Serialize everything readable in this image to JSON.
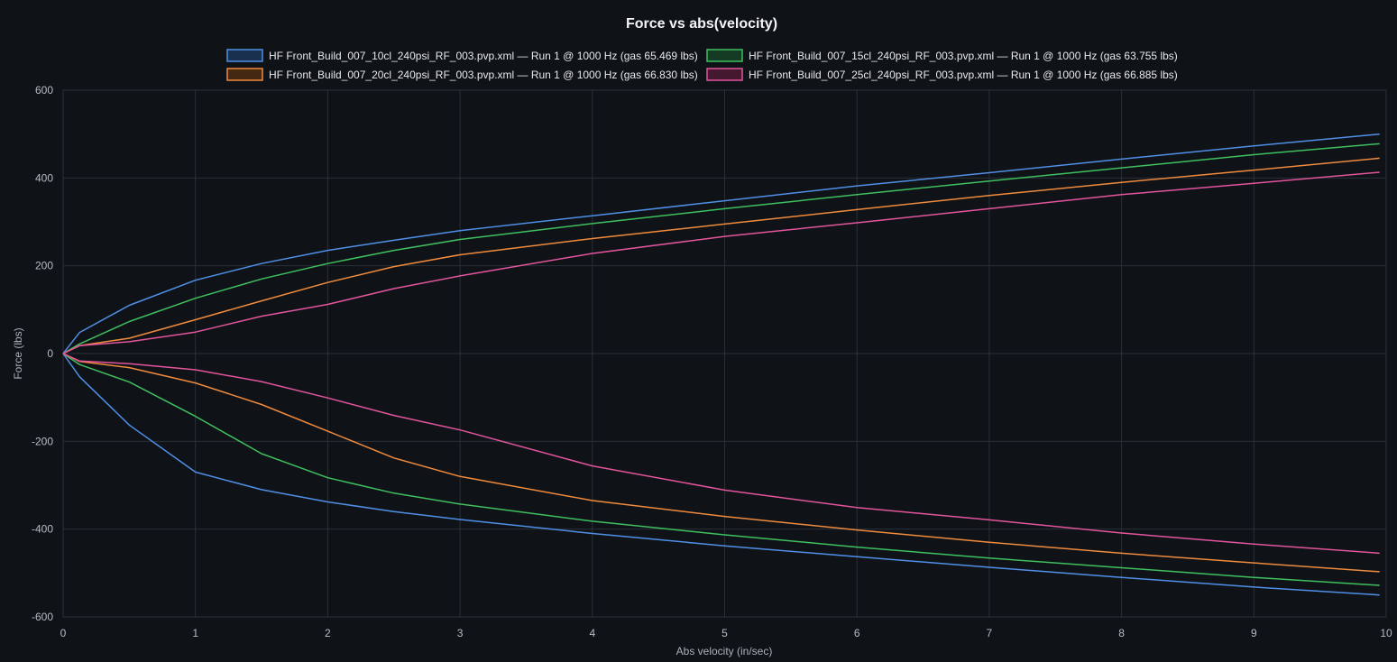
{
  "chart_data": {
    "type": "line",
    "title": "Force vs abs(velocity)",
    "xlabel": "Abs velocity (in/sec)",
    "ylabel": "Force (lbs)",
    "xlim": [
      0,
      10
    ],
    "ylim": [
      -600,
      600
    ],
    "x_ticks": [
      "0",
      "1",
      "2",
      "3",
      "4",
      "5",
      "6",
      "7",
      "8",
      "9",
      "10"
    ],
    "y_ticks": [
      "600",
      "400",
      "200",
      "0",
      "-200",
      "-400",
      "-600"
    ],
    "grid": true,
    "legend_position": "top-center",
    "series": [
      {
        "name": "HF Front_Build_007_10cl_240psi_RF_003.pvp.xml — Run 1 @ 1000 Hz (gas 65.469 lbs)",
        "color": "#4f8fe6",
        "fill": "#19304f",
        "rebound": [
          [
            0,
            0
          ],
          [
            0.125,
            48
          ],
          [
            0.5,
            110
          ],
          [
            1,
            167
          ],
          [
            1.5,
            205
          ],
          [
            2,
            235
          ],
          [
            2.5,
            258
          ],
          [
            3,
            280
          ],
          [
            4,
            314
          ],
          [
            5,
            348
          ],
          [
            6,
            382
          ],
          [
            7,
            412
          ],
          [
            8,
            443
          ],
          [
            9,
            473
          ],
          [
            9.95,
            500
          ]
        ],
        "compression": [
          [
            0,
            0
          ],
          [
            0.125,
            -53
          ],
          [
            0.5,
            -163
          ],
          [
            1,
            -270
          ],
          [
            1.5,
            -310
          ],
          [
            2,
            -338
          ],
          [
            2.5,
            -360
          ],
          [
            3,
            -378
          ],
          [
            4,
            -410
          ],
          [
            5,
            -438
          ],
          [
            6,
            -463
          ],
          [
            7,
            -487
          ],
          [
            8,
            -510
          ],
          [
            9,
            -532
          ],
          [
            9.95,
            -550
          ]
        ]
      },
      {
        "name": "HF Front_Build_007_15cl_240psi_RF_003.pvp.xml — Run 1 @ 1000 Hz (gas 63.755 lbs)",
        "color": "#3fbf5e",
        "fill": "#153b24",
        "rebound": [
          [
            0,
            0
          ],
          [
            0.125,
            22
          ],
          [
            0.5,
            73
          ],
          [
            1,
            126
          ],
          [
            1.5,
            170
          ],
          [
            2,
            205
          ],
          [
            2.5,
            235
          ],
          [
            3,
            260
          ],
          [
            4,
            296
          ],
          [
            5,
            330
          ],
          [
            6,
            362
          ],
          [
            7,
            393
          ],
          [
            8,
            423
          ],
          [
            9,
            453
          ],
          [
            9.95,
            478
          ]
        ],
        "compression": [
          [
            0,
            0
          ],
          [
            0.125,
            -25
          ],
          [
            0.5,
            -65
          ],
          [
            1,
            -143
          ],
          [
            1.5,
            -228
          ],
          [
            2,
            -283
          ],
          [
            2.5,
            -318
          ],
          [
            3,
            -343
          ],
          [
            4,
            -382
          ],
          [
            5,
            -413
          ],
          [
            6,
            -441
          ],
          [
            7,
            -466
          ],
          [
            8,
            -488
          ],
          [
            9,
            -510
          ],
          [
            9.95,
            -528
          ]
        ]
      },
      {
        "name": "HF Front_Build_007_20cl_240psi_RF_003.pvp.xml — Run 1 @ 1000 Hz (gas 66.830 lbs)",
        "color": "#f08a3c",
        "fill": "#452812",
        "rebound": [
          [
            0,
            0
          ],
          [
            0.125,
            18
          ],
          [
            0.5,
            35
          ],
          [
            1,
            77
          ],
          [
            1.5,
            120
          ],
          [
            2,
            162
          ],
          [
            2.5,
            198
          ],
          [
            3,
            225
          ],
          [
            4,
            262
          ],
          [
            5,
            295
          ],
          [
            6,
            328
          ],
          [
            7,
            360
          ],
          [
            8,
            390
          ],
          [
            9,
            418
          ],
          [
            9.95,
            445
          ]
        ],
        "compression": [
          [
            0,
            0
          ],
          [
            0.125,
            -18
          ],
          [
            0.5,
            -32
          ],
          [
            1,
            -67
          ],
          [
            1.5,
            -116
          ],
          [
            2,
            -177
          ],
          [
            2.5,
            -238
          ],
          [
            3,
            -280
          ],
          [
            4,
            -335
          ],
          [
            5,
            -371
          ],
          [
            6,
            -402
          ],
          [
            7,
            -430
          ],
          [
            8,
            -455
          ],
          [
            9,
            -477
          ],
          [
            9.95,
            -497
          ]
        ]
      },
      {
        "name": "HF Front_Build_007_25cl_240psi_RF_003.pvp.xml — Run 1 @ 1000 Hz (gas 66.885 lbs)",
        "color": "#e2549b",
        "fill": "#44182f",
        "rebound": [
          [
            0,
            0
          ],
          [
            0.125,
            18
          ],
          [
            0.5,
            27
          ],
          [
            1,
            49
          ],
          [
            1.5,
            85
          ],
          [
            2,
            112
          ],
          [
            2.5,
            148
          ],
          [
            3,
            177
          ],
          [
            4,
            228
          ],
          [
            5,
            267
          ],
          [
            6,
            298
          ],
          [
            7,
            330
          ],
          [
            8,
            362
          ],
          [
            9,
            388
          ],
          [
            9.95,
            413
          ]
        ],
        "compression": [
          [
            0,
            0
          ],
          [
            0.125,
            -17
          ],
          [
            0.5,
            -23
          ],
          [
            1,
            -37
          ],
          [
            1.5,
            -64
          ],
          [
            2,
            -101
          ],
          [
            2.5,
            -141
          ],
          [
            3,
            -174
          ],
          [
            4,
            -256
          ],
          [
            5,
            -311
          ],
          [
            6,
            -351
          ],
          [
            7,
            -379
          ],
          [
            8,
            -409
          ],
          [
            9,
            -434
          ],
          [
            9.95,
            -455
          ]
        ]
      }
    ]
  }
}
